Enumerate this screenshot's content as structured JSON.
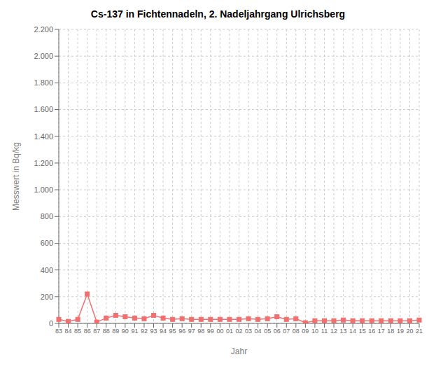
{
  "chart_data": {
    "type": "line",
    "title": "Cs-137 in Fichtennadeln, 2. Nadeljahrgang Ulrichsberg",
    "xlabel": "Jahr",
    "ylabel": "Messwert in Bq/kg",
    "categories": [
      "83",
      "84",
      "85",
      "86",
      "87",
      "88",
      "89",
      "90",
      "91",
      "92",
      "93",
      "94",
      "95",
      "96",
      "97",
      "98",
      "99",
      "00",
      "01",
      "02",
      "03",
      "04",
      "05",
      "06",
      "07",
      "08",
      "09",
      "10",
      "11",
      "12",
      "13",
      "14",
      "15",
      "16",
      "17",
      "18",
      "19",
      "20",
      "21"
    ],
    "values": [
      30,
      15,
      30,
      220,
      10,
      40,
      60,
      50,
      40,
      35,
      60,
      40,
      30,
      35,
      30,
      30,
      30,
      30,
      30,
      30,
      35,
      30,
      35,
      50,
      30,
      35,
      5,
      20,
      20,
      20,
      25,
      20,
      20,
      20,
      20,
      20,
      20,
      20,
      25
    ],
    "color": "#f07070",
    "marker": "square",
    "ylim": [
      0,
      2200
    ],
    "yticks": [
      0,
      200,
      400,
      600,
      800,
      {
        "value": 1000,
        "label": "1.000"
      },
      {
        "value": 1200,
        "label": "1.200"
      },
      {
        "value": 1400,
        "label": "1.400"
      },
      {
        "value": 1600,
        "label": "1.600"
      },
      {
        "value": 1800,
        "label": "1.800"
      },
      {
        "value": 2000,
        "label": "2.000"
      },
      {
        "value": 2200,
        "label": "2.200"
      }
    ],
    "grid": true
  }
}
